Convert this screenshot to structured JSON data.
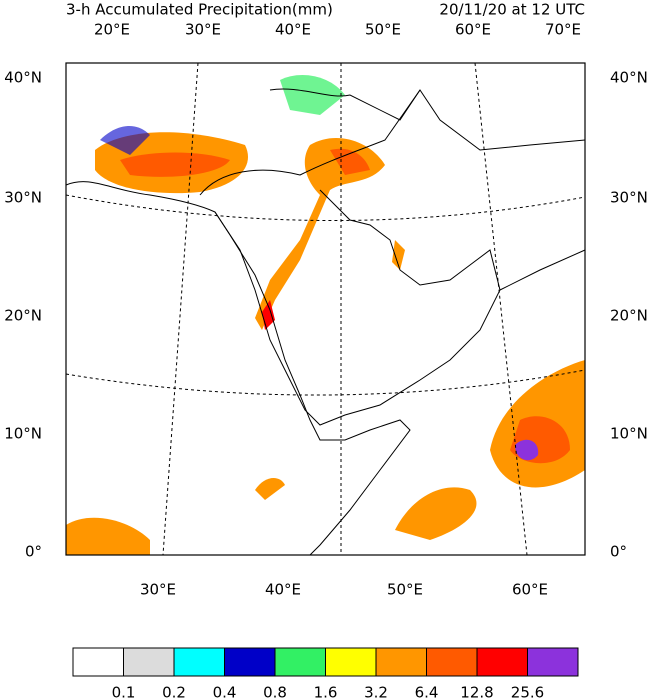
{
  "title": "3-h Accumulated Precipitation(mm)",
  "valid_time": "20/11/20 at 12 UTC",
  "top_lon_labels": [
    "20°E",
    "30°E",
    "40°E",
    "50°E",
    "60°E",
    "70°E"
  ],
  "bottom_lon_labels": [
    "30°E",
    "40°E",
    "50°E",
    "60°E"
  ],
  "lat_labels": [
    "40°N",
    "30°N",
    "20°N",
    "10°N",
    "0°"
  ],
  "colorbar": {
    "colors": [
      "#ffffff",
      "#dcdcdc",
      "#00ffff",
      "#0000c8",
      "#32f064",
      "#ffff00",
      "#ff9600",
      "#ff5a00",
      "#ff0000",
      "#8c32dc"
    ],
    "labels": [
      0.1,
      0.2,
      0.4,
      0.8,
      1.6,
      3.2,
      6.4,
      12.8,
      25.6
    ]
  }
}
